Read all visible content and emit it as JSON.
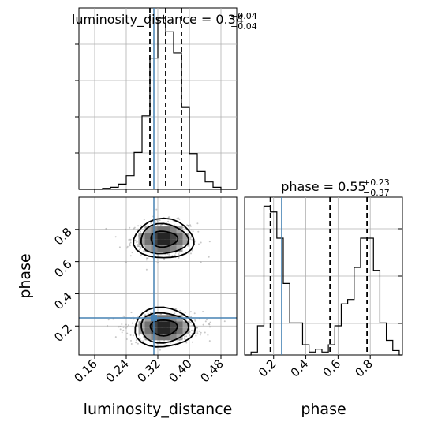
{
  "chart_data": {
    "type": "corner",
    "parameters": [
      "luminosity_distance",
      "phase"
    ],
    "titles": {
      "luminosity_distance": {
        "prefix": "luminosity_distance = ",
        "value": "0.34",
        "plus": "+0.04",
        "minus": "−0.04"
      },
      "phase": {
        "prefix": "phase = ",
        "value": "0.55",
        "plus": "+0.23",
        "minus": "−0.37"
      }
    },
    "axis_labels": {
      "x_lower_left": "luminosity_distance",
      "y_lower_left": "phase",
      "x_lower_right": "phase"
    },
    "truth": {
      "luminosity_distance": 0.31,
      "phase": 0.25
    },
    "colors": {
      "truth": "#4682b4",
      "hist": "#000000",
      "grid": "#b0b0b0"
    },
    "grid": true,
    "luminosity_distance": {
      "range": [
        0.12,
        0.52
      ],
      "ticks": [
        0.16,
        0.24,
        0.32,
        0.4,
        0.48
      ],
      "tick_labels": [
        "0.16",
        "0.24",
        "0.32",
        "0.40",
        "0.48"
      ],
      "quantiles": [
        0.3,
        0.34,
        0.38
      ],
      "hist_edges": [
        0.12,
        0.14,
        0.16,
        0.18,
        0.2,
        0.22,
        0.24,
        0.26,
        0.28,
        0.3,
        0.32,
        0.34,
        0.36,
        0.38,
        0.4,
        0.42,
        0.44,
        0.46,
        0.48,
        0.5,
        0.52
      ],
      "hist_counts": [
        0,
        0,
        0,
        1,
        2,
        5,
        13,
        35,
        70,
        125,
        163,
        150,
        130,
        78,
        34,
        17,
        7,
        2,
        0,
        0
      ]
    },
    "phase": {
      "range": [
        0.02,
        1.0
      ],
      "ticks": [
        0.2,
        0.4,
        0.6,
        0.8
      ],
      "tick_labels": [
        "0.2",
        "0.4",
        "0.6",
        "0.8"
      ],
      "quantiles": [
        0.18,
        0.55,
        0.78
      ],
      "hist_edges": [
        0.02,
        0.06,
        0.1,
        0.14,
        0.18,
        0.22,
        0.26,
        0.3,
        0.34,
        0.38,
        0.42,
        0.46,
        0.5,
        0.54,
        0.58,
        0.62,
        0.66,
        0.7,
        0.74,
        0.78,
        0.82,
        0.86,
        0.9,
        0.94,
        0.98,
        1.0
      ],
      "hist_counts": [
        0,
        2,
        20,
        102,
        98,
        80,
        49,
        22,
        22,
        7,
        2,
        4,
        2,
        7,
        20,
        35,
        38,
        60,
        80,
        80,
        58,
        22,
        10,
        3,
        0
      ]
    },
    "density_modes": [
      {
        "luminosity_distance": 0.335,
        "phase": 0.74,
        "sigma_x": 0.03,
        "sigma_y": 0.04
      },
      {
        "luminosity_distance": 0.335,
        "phase": 0.19,
        "sigma_x": 0.035,
        "sigma_y": 0.035
      }
    ]
  }
}
